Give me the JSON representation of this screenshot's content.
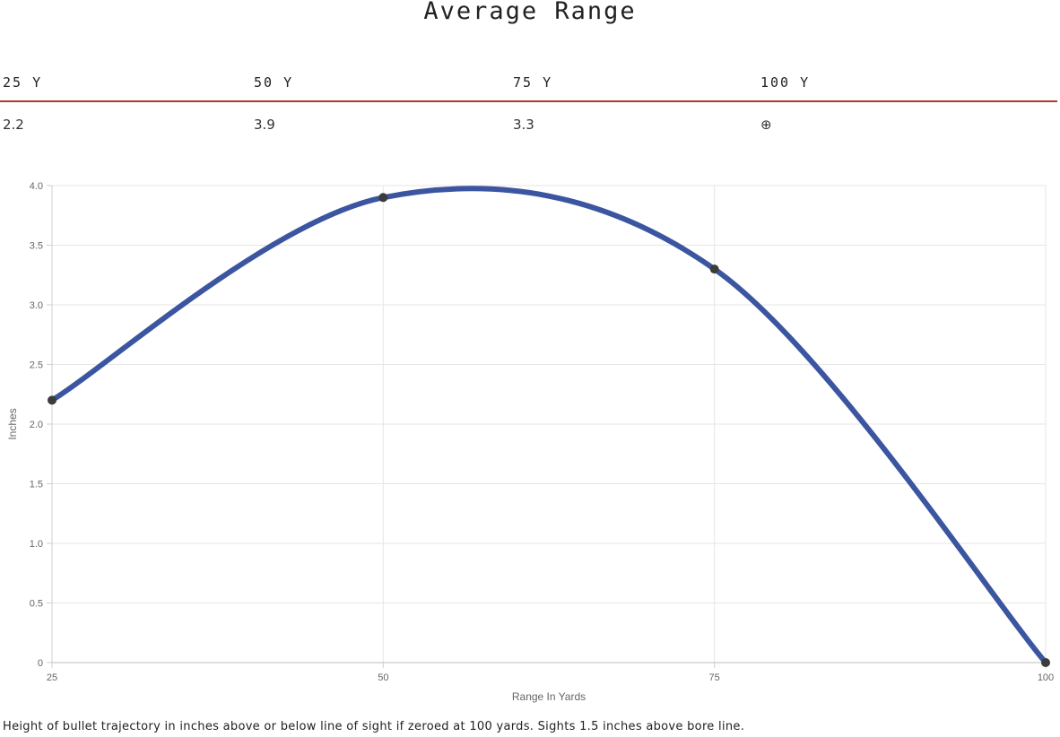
{
  "title": "Average Range",
  "range_table": {
    "headers": [
      "25 Y",
      "50 Y",
      "75 Y",
      "100 Y"
    ],
    "values": [
      "2.2",
      "3.9",
      "3.3",
      "⊕"
    ]
  },
  "footnote": "Height of bullet trajectory in inches above or below line of sight if zeroed at 100 yards. Sights 1.5 inches above bore line.",
  "colors": {
    "line": "#3b55a0",
    "point": "#3c3c3c",
    "table_rule": "#b03a2e",
    "grid": "#e6e6e6"
  },
  "chart_data": {
    "type": "line",
    "x": [
      25,
      50,
      75,
      100
    ],
    "series": [
      {
        "values": [
          2.2,
          3.9,
          3.3,
          0
        ]
      }
    ],
    "xlabel": "Range In Yards",
    "ylabel": "Inches",
    "xlim": [
      25,
      100
    ],
    "ylim": [
      0,
      4.0
    ],
    "xticks": [
      "25",
      "50",
      "75",
      "100"
    ],
    "yticks": [
      "0",
      "0.5",
      "1.0",
      "1.5",
      "2.0",
      "2.5",
      "3.0",
      "3.5",
      "4.0"
    ],
    "grid": true,
    "legend": "none"
  }
}
